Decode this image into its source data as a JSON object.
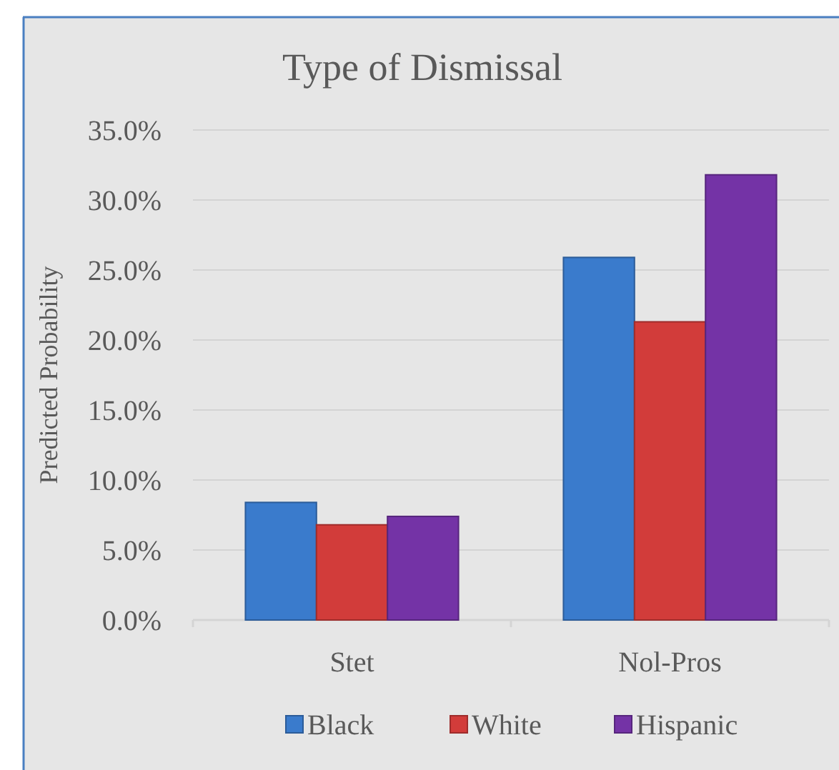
{
  "chart_data": {
    "type": "bar",
    "title": "Type of Dismissal",
    "ylabel": "Predicted Probability",
    "categories": [
      "Stet",
      "Nol-Pros"
    ],
    "series": [
      {
        "name": "Black",
        "color": "#3a7bcc",
        "values": [
          8.4,
          25.9
        ]
      },
      {
        "name": "White",
        "color": "#d23c3a",
        "values": [
          6.8,
          21.3
        ]
      },
      {
        "name": "Hispanic",
        "color": "#7433a6",
        "values": [
          7.4,
          31.8
        ]
      }
    ],
    "ylim": [
      0,
      35
    ],
    "yticks": [
      {
        "value": 0,
        "label": "0.0%"
      },
      {
        "value": 5,
        "label": "5.0%"
      },
      {
        "value": 10,
        "label": "10.0%"
      },
      {
        "value": 15,
        "label": "15.0%"
      },
      {
        "value": 20,
        "label": "20.0%"
      },
      {
        "value": 25,
        "label": "25.0%"
      },
      {
        "value": 30,
        "label": "30.0%"
      },
      {
        "value": 35,
        "label": "35.0%"
      }
    ],
    "grid": "y",
    "legend": "bottom"
  }
}
